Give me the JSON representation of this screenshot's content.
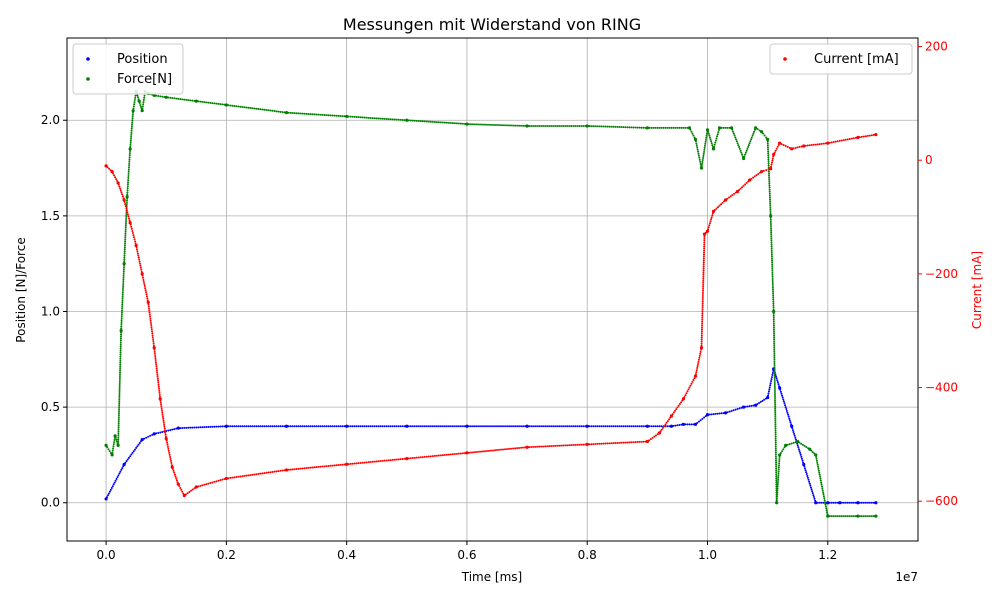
{
  "chart_data": {
    "type": "scatter",
    "title": "Messungen mit Widerstand von RING",
    "xlabel": "Time [ms]",
    "ylabel": "Position [N]/Force",
    "ylabel_right": "Current [mA]",
    "x_offset_label": "1e7",
    "xlim": [
      -0.065,
      1.35
    ],
    "ylim": [
      -0.2,
      2.43
    ],
    "ylim_right": [
      -670,
      215
    ],
    "x_ticks": [
      0.0,
      0.2,
      0.4,
      0.6,
      0.8,
      1.0,
      1.2
    ],
    "x_tick_labels": [
      "0.0",
      "0.2",
      "0.4",
      "0.6",
      "0.8",
      "1.0",
      "1.2"
    ],
    "y_ticks": [
      0.0,
      0.5,
      1.0,
      1.5,
      2.0
    ],
    "y_tick_labels": [
      "0.0",
      "0.5",
      "1.0",
      "1.5",
      "2.0"
    ],
    "y_right_ticks": [
      200,
      0,
      -200,
      -400,
      -600
    ],
    "y_right_tick_labels": [
      "200",
      "0",
      "−200",
      "−400",
      "−600"
    ],
    "grid": true,
    "legend_left": {
      "placement": "upper-left",
      "entries": [
        "Position",
        "Force[N]"
      ]
    },
    "legend_right": {
      "placement": "upper-right",
      "entries": [
        "Current [mA]"
      ]
    },
    "colors": {
      "position": "#0000ff",
      "force": "#008000",
      "current": "#ff0000",
      "grid": "#b0b0b0",
      "right_axis": "#ff0000"
    },
    "series": [
      {
        "name": "Position",
        "axis": "left",
        "x": [
          0.0,
          0.03,
          0.06,
          0.08,
          0.12,
          0.2,
          0.3,
          0.4,
          0.5,
          0.6,
          0.7,
          0.8,
          0.9,
          0.94,
          0.96,
          0.98,
          1.0,
          1.03,
          1.06,
          1.08,
          1.1,
          1.11,
          1.12,
          1.14,
          1.16,
          1.18,
          1.2,
          1.22,
          1.25,
          1.28
        ],
        "y": [
          0.02,
          0.2,
          0.33,
          0.36,
          0.39,
          0.4,
          0.4,
          0.4,
          0.4,
          0.4,
          0.4,
          0.4,
          0.4,
          0.4,
          0.41,
          0.41,
          0.46,
          0.47,
          0.5,
          0.51,
          0.55,
          0.7,
          0.6,
          0.4,
          0.2,
          0.0,
          0.0,
          0.0,
          0.0,
          0.0
        ]
      },
      {
        "name": "Force[N]",
        "axis": "left",
        "x": [
          0.0,
          0.01,
          0.015,
          0.02,
          0.025,
          0.03,
          0.035,
          0.04,
          0.045,
          0.05,
          0.055,
          0.06,
          0.065,
          0.07,
          0.08,
          0.1,
          0.15,
          0.2,
          0.3,
          0.4,
          0.5,
          0.6,
          0.7,
          0.8,
          0.9,
          0.97,
          0.98,
          0.99,
          1.0,
          1.01,
          1.02,
          1.04,
          1.06,
          1.08,
          1.09,
          1.1,
          1.105,
          1.11,
          1.115,
          1.12,
          1.13,
          1.15,
          1.17,
          1.18,
          1.2,
          1.25,
          1.28
        ],
        "y": [
          0.3,
          0.25,
          0.35,
          0.3,
          0.9,
          1.25,
          1.6,
          1.85,
          2.05,
          2.15,
          2.1,
          2.05,
          2.15,
          2.14,
          2.13,
          2.12,
          2.1,
          2.08,
          2.04,
          2.02,
          2.0,
          1.98,
          1.97,
          1.97,
          1.96,
          1.96,
          1.9,
          1.75,
          1.95,
          1.85,
          1.96,
          1.96,
          1.8,
          1.96,
          1.94,
          1.9,
          1.5,
          1.0,
          0.0,
          0.25,
          0.3,
          0.32,
          0.28,
          0.25,
          -0.07,
          -0.07,
          -0.07
        ]
      },
      {
        "name": "Current [mA]",
        "axis": "right",
        "x": [
          0.0,
          0.01,
          0.02,
          0.03,
          0.04,
          0.05,
          0.06,
          0.07,
          0.08,
          0.09,
          0.1,
          0.11,
          0.12,
          0.13,
          0.15,
          0.2,
          0.3,
          0.4,
          0.5,
          0.6,
          0.7,
          0.8,
          0.9,
          0.92,
          0.94,
          0.96,
          0.98,
          0.99,
          0.995,
          1.0,
          1.01,
          1.03,
          1.05,
          1.07,
          1.09,
          1.105,
          1.11,
          1.12,
          1.14,
          1.16,
          1.2,
          1.25,
          1.28
        ],
        "y": [
          -10,
          -20,
          -40,
          -70,
          -110,
          -150,
          -200,
          -250,
          -330,
          -420,
          -490,
          -540,
          -570,
          -590,
          -575,
          -560,
          -545,
          -535,
          -525,
          -515,
          -505,
          -500,
          -495,
          -480,
          -450,
          -420,
          -380,
          -330,
          -130,
          -125,
          -90,
          -70,
          -55,
          -35,
          -20,
          -15,
          10,
          30,
          20,
          25,
          30,
          40,
          45
        ]
      }
    ]
  }
}
